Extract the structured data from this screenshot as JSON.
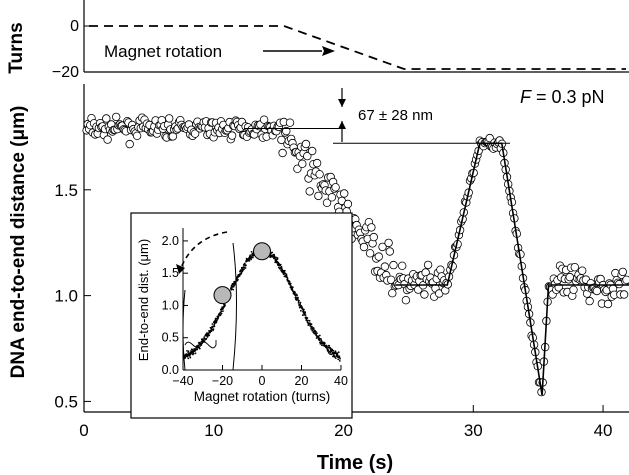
{
  "chart_data": [
    {
      "type": "scatter",
      "panel": "top",
      "ylabel": "Turns",
      "yticks": [
        "0",
        "−20"
      ],
      "annotation": "Magnet rotation",
      "series": [
        {
          "name": "",
          "style": "dashed",
          "x": [
            0,
            15.2,
            24.8,
            42
          ],
          "y": [
            0,
            0,
            -20,
            -20
          ]
        }
      ]
    },
    {
      "type": "scatter",
      "panel": "main",
      "xlabel": "Time (s)",
      "ylabel": "DNA end-to-end distance (μm)",
      "xticks": [
        "0",
        "10",
        "20",
        "30",
        "40"
      ],
      "yticks": [
        "0.5",
        "1.0",
        "1.5"
      ],
      "xlim": [
        0,
        42
      ],
      "ylim": [
        0.45,
        2.0
      ],
      "force_label_prefix": "F",
      "force_label_value": " = 0.3 pN",
      "step_annotation": "67 ± 28 nm",
      "upper_level": 1.79,
      "lower_level": 1.72,
      "segments": {
        "x": [
          24,
          28,
          30.5,
          32.2,
          35.3,
          35.8,
          42
        ],
        "y": [
          1.05,
          1.05,
          1.72,
          1.72,
          0.53,
          1.05,
          1.05
        ]
      }
    },
    {
      "type": "scatter",
      "panel": "inset",
      "xlabel": "Magnet rotation (turns)",
      "ylabel": "End-to-end dist. (μm)",
      "xticks": [
        "−40",
        "−20",
        "0",
        "20",
        "40"
      ],
      "yticks": [
        "0.0",
        "0.5",
        "1.0",
        "1.5",
        "2.0"
      ],
      "xlim": [
        -40,
        40
      ],
      "ylim": [
        0,
        2.2
      ],
      "peak": 1.85,
      "half_width": 26,
      "bead_positions": [
        {
          "x": -20,
          "y": 1.16
        },
        {
          "x": 0,
          "y": 1.84
        }
      ]
    }
  ]
}
